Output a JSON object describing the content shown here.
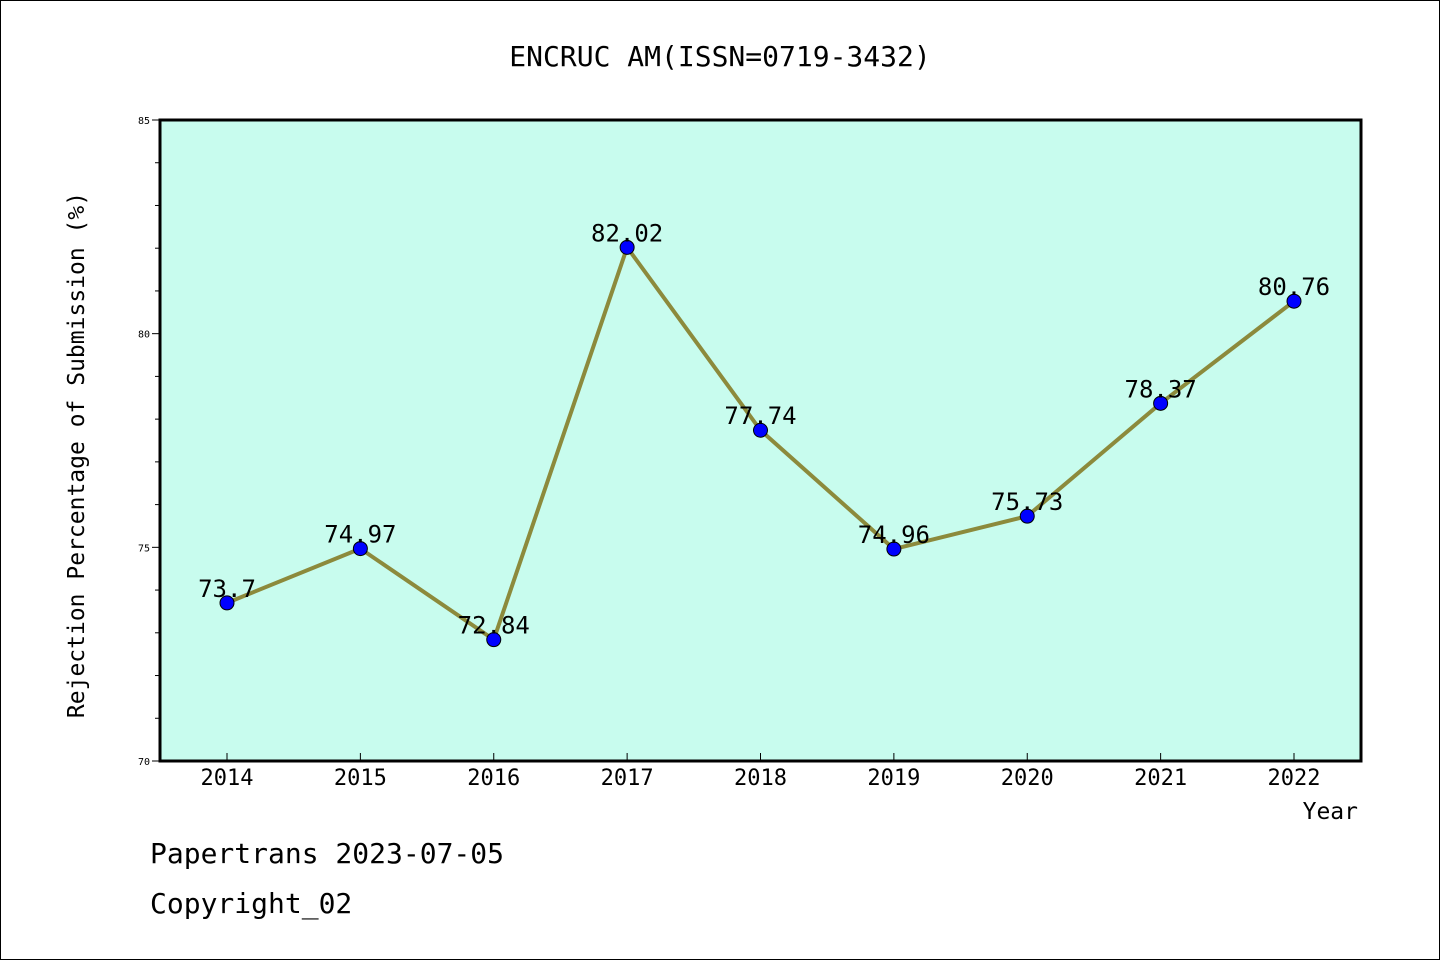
{
  "chart_data": {
    "type": "line",
    "title": "ENCRUC AM(ISSN=0719-3432)",
    "xlabel": "Year",
    "ylabel": "Rejection Percentage of Submission (%)",
    "categories": [
      "2014",
      "2015",
      "2016",
      "2017",
      "2018",
      "2019",
      "2020",
      "2021",
      "2022"
    ],
    "series": [
      {
        "values": [
          73.7,
          74.97,
          72.84,
          82.02,
          77.74,
          74.96,
          75.73,
          78.37,
          80.76
        ],
        "labels": [
          "73.7",
          "74.97",
          "72.84",
          "82.02",
          "77.74",
          "74.96",
          "75.73",
          "78.37",
          "80.76"
        ]
      }
    ],
    "ylim": [
      70,
      85
    ],
    "yticks": [
      "70",
      "75",
      "80",
      "85"
    ],
    "grid": false,
    "colors": {
      "plot_background": "#c8fcee",
      "line": "#8c8a3c",
      "marker": "#0000ff"
    }
  },
  "footer": {
    "line1": "Papertrans 2023-07-05",
    "line2": "Copyright_02"
  }
}
